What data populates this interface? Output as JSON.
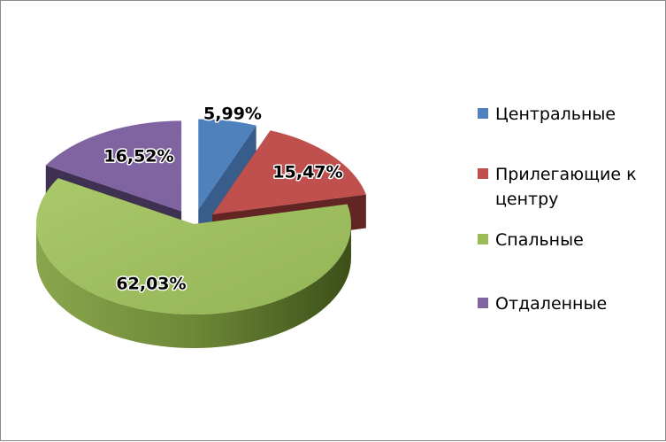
{
  "chart_data": {
    "type": "pie",
    "style": "3d-exploded",
    "legend_position": "right",
    "categories": [
      "Центральные",
      "Прилегающие к центру",
      "Спальные",
      "Отдаленные"
    ],
    "values": [
      5.99,
      15.47,
      62.03,
      16.52
    ],
    "labels": [
      "5,99%",
      "15,47%",
      "62,03%",
      "16,52%"
    ],
    "colors": [
      "#4f81bd",
      "#c0504d",
      "#9bbb59",
      "#8064a2"
    ]
  }
}
